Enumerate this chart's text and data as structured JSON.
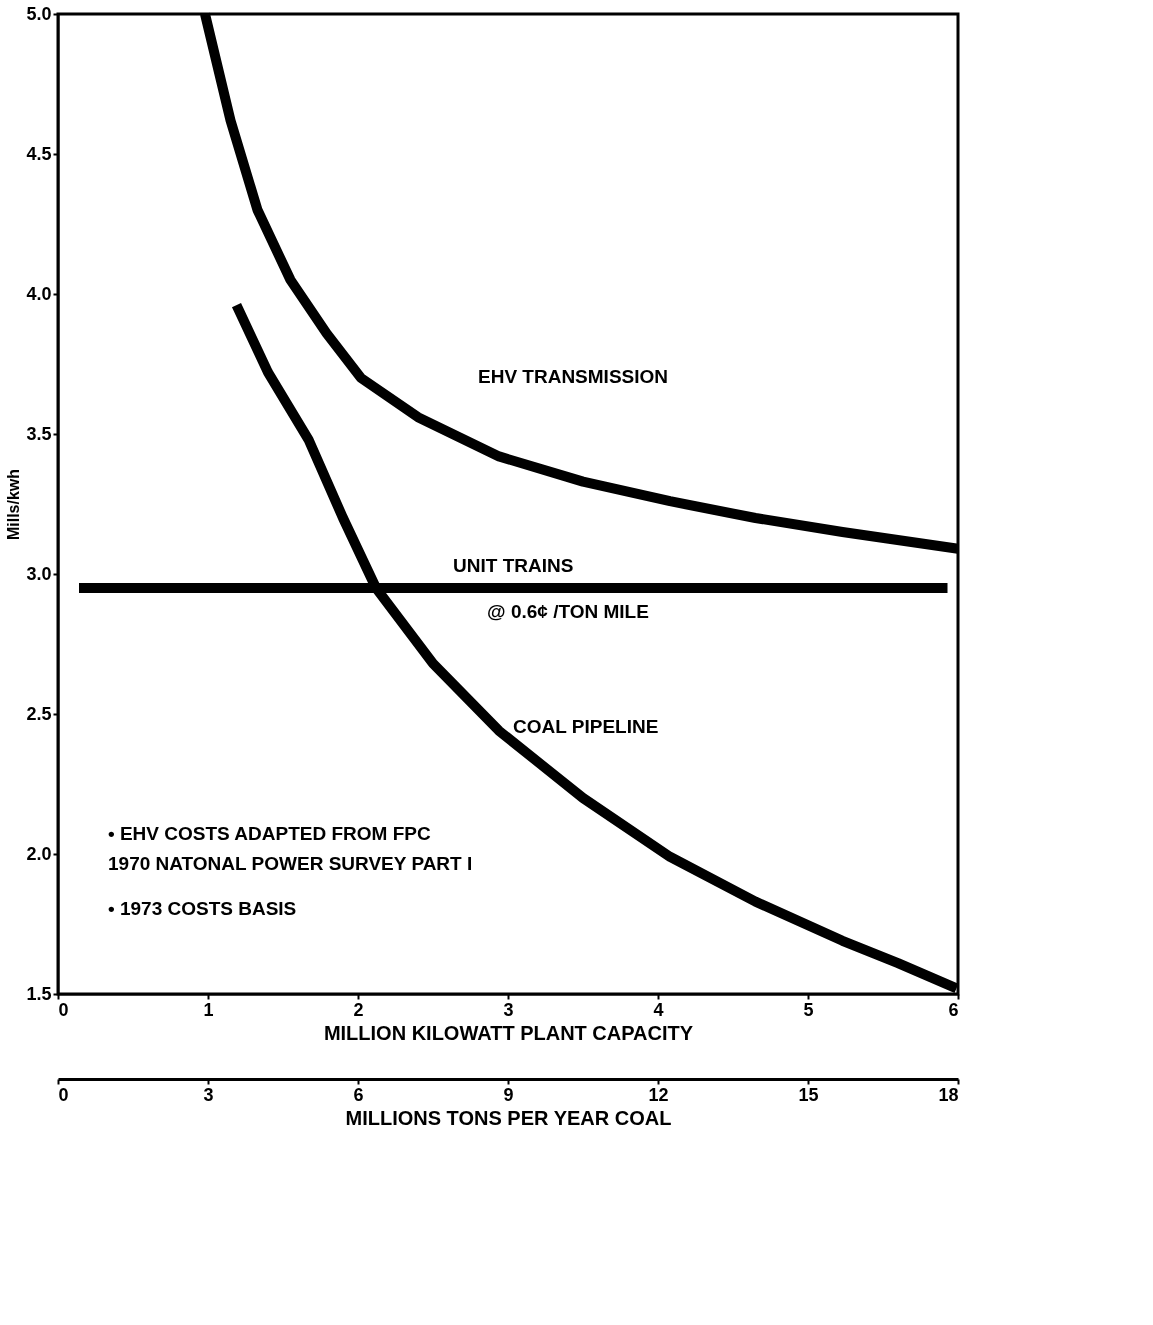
{
  "chart_data": {
    "type": "line",
    "xlabel": "MILLION KILOWATT PLANT CAPACITY",
    "ylabel": "Mills/kwh",
    "x2label": "MILLIONS TONS PER YEAR COAL",
    "xlim": [
      0,
      6
    ],
    "xticks": [
      0,
      1,
      2,
      3,
      4,
      5,
      6
    ],
    "x2lim": [
      0,
      18
    ],
    "x2ticks": [
      0,
      3,
      6,
      9,
      12,
      15,
      18
    ],
    "ylim": [
      1.5,
      5.0
    ],
    "yticks": [
      {
        "value": 1.5,
        "label": "1.5"
      },
      {
        "value": 2.0,
        "label": "2.0"
      },
      {
        "value": 2.5,
        "label": "2.5"
      },
      {
        "value": 3.0,
        "label": "3.0"
      },
      {
        "value": 3.5,
        "label": "3.5"
      },
      {
        "value": 4.0,
        "label": "4.0"
      },
      {
        "value": 4.5,
        "label": "4.5"
      },
      {
        "value": 5.0,
        "label": "5.0"
      }
    ],
    "grid": false,
    "legend": false,
    "marker": "none",
    "line_style": "solid",
    "series": [
      {
        "name": "EHV TRANSMISSION",
        "color": "#000000",
        "x": [
          0.98,
          1.15,
          1.33,
          1.55,
          1.79,
          2.02,
          2.4,
          2.94,
          3.5,
          4.08,
          4.65,
          5.23,
          6.0
        ],
        "values": [
          5.0,
          4.62,
          4.3,
          4.05,
          3.86,
          3.7,
          3.56,
          3.42,
          3.33,
          3.26,
          3.2,
          3.15,
          3.09
        ]
      },
      {
        "name": "UNIT TRAINS",
        "color": "#000000",
        "x": [
          0.14,
          5.93
        ],
        "values": [
          2.95,
          2.95
        ]
      },
      {
        "name": "COAL PIPELINE",
        "color": "#000000",
        "x": [
          1.19,
          1.4,
          1.67,
          1.9,
          2.12,
          2.5,
          2.94,
          3.5,
          4.08,
          4.65,
          5.23,
          5.6,
          5.99
        ],
        "values": [
          3.96,
          3.72,
          3.48,
          3.2,
          2.95,
          2.68,
          2.44,
          2.2,
          1.99,
          1.83,
          1.69,
          1.61,
          1.52
        ]
      }
    ],
    "annotations": [
      {
        "text": "@ 0.6¢ /TON MILE",
        "x": 3.4,
        "y": 2.95
      },
      "• EHV COSTS ADAPTED FROM FPC",
      "1970 NATONAL POWER SURVEY PART I",
      "• 1973 COSTS BASIS"
    ]
  }
}
